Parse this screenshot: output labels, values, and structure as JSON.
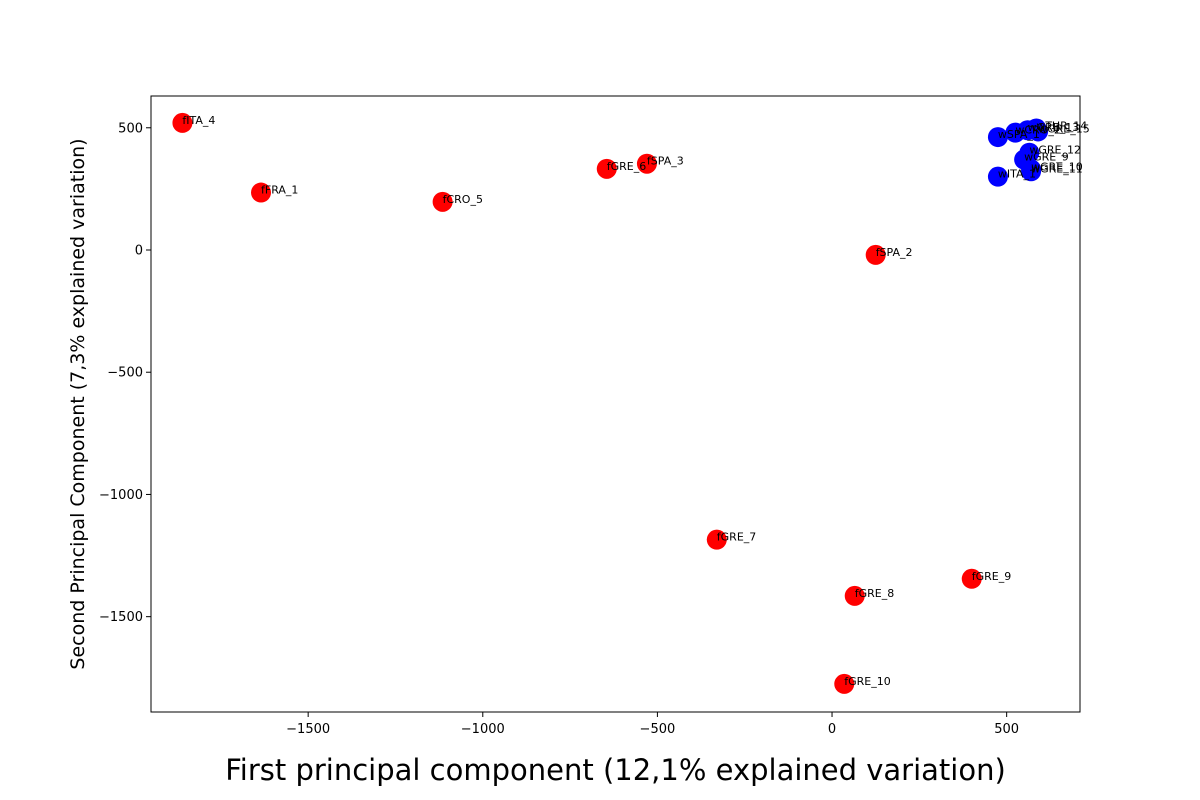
{
  "chart_data": {
    "type": "scatter",
    "xlabel": "First principal component (12,1% explained variation)",
    "ylabel": "Second Principal Component (7,3% explained variation)",
    "xlim": [
      -1950,
      710
    ],
    "ylim": [
      -1890,
      630
    ],
    "xticks": [
      -1500,
      -1000,
      -500,
      0,
      500
    ],
    "yticks": [
      500,
      0,
      -500,
      -1000,
      -1500
    ],
    "xtick_labels": [
      "−1500",
      "−1000",
      "−500",
      "0",
      "500"
    ],
    "ytick_labels": [
      "500",
      "0",
      "−500",
      "−1000",
      "−1500"
    ],
    "colors": {
      "red": "#ff0000",
      "blue": "#0000ff"
    },
    "series": [
      {
        "color": "#ff0000",
        "points": [
          {
            "x": -1860,
            "y": 520,
            "label": "fITA_4"
          },
          {
            "x": -1635,
            "y": 235,
            "label": "fFRA_1"
          },
          {
            "x": -1115,
            "y": 197,
            "label": "fCRO_5"
          },
          {
            "x": -645,
            "y": 332,
            "label": "fGRE_6"
          },
          {
            "x": -530,
            "y": 353,
            "label": "fSPA_3"
          },
          {
            "x": 125,
            "y": -20,
            "label": "fSPA_2"
          },
          {
            "x": -330,
            "y": -1185,
            "label": "fGRE_7"
          },
          {
            "x": 65,
            "y": -1415,
            "label": "fGRE_8"
          },
          {
            "x": 400,
            "y": -1345,
            "label": "fGRE_9"
          },
          {
            "x": 35,
            "y": -1775,
            "label": "fGRE_10"
          }
        ]
      },
      {
        "color": "#0000ff",
        "points": [
          {
            "x": 475,
            "y": 300,
            "label": "wITA_1"
          },
          {
            "x": 475,
            "y": 462,
            "label": "wSPA_1"
          },
          {
            "x": 525,
            "y": 480,
            "label": "wCRO_2"
          },
          {
            "x": 560,
            "y": 490,
            "label": "wGRE_13"
          },
          {
            "x": 585,
            "y": 497,
            "label": "wTUR_14"
          },
          {
            "x": 590,
            "y": 485,
            "label": "wGRE_15"
          },
          {
            "x": 565,
            "y": 398,
            "label": "wGRE_12"
          },
          {
            "x": 550,
            "y": 370,
            "label": "wGRE_9"
          },
          {
            "x": 570,
            "y": 330,
            "label": "wGRE_10"
          },
          {
            "x": 570,
            "y": 322,
            "label": "wGRE_11"
          }
        ]
      }
    ]
  }
}
